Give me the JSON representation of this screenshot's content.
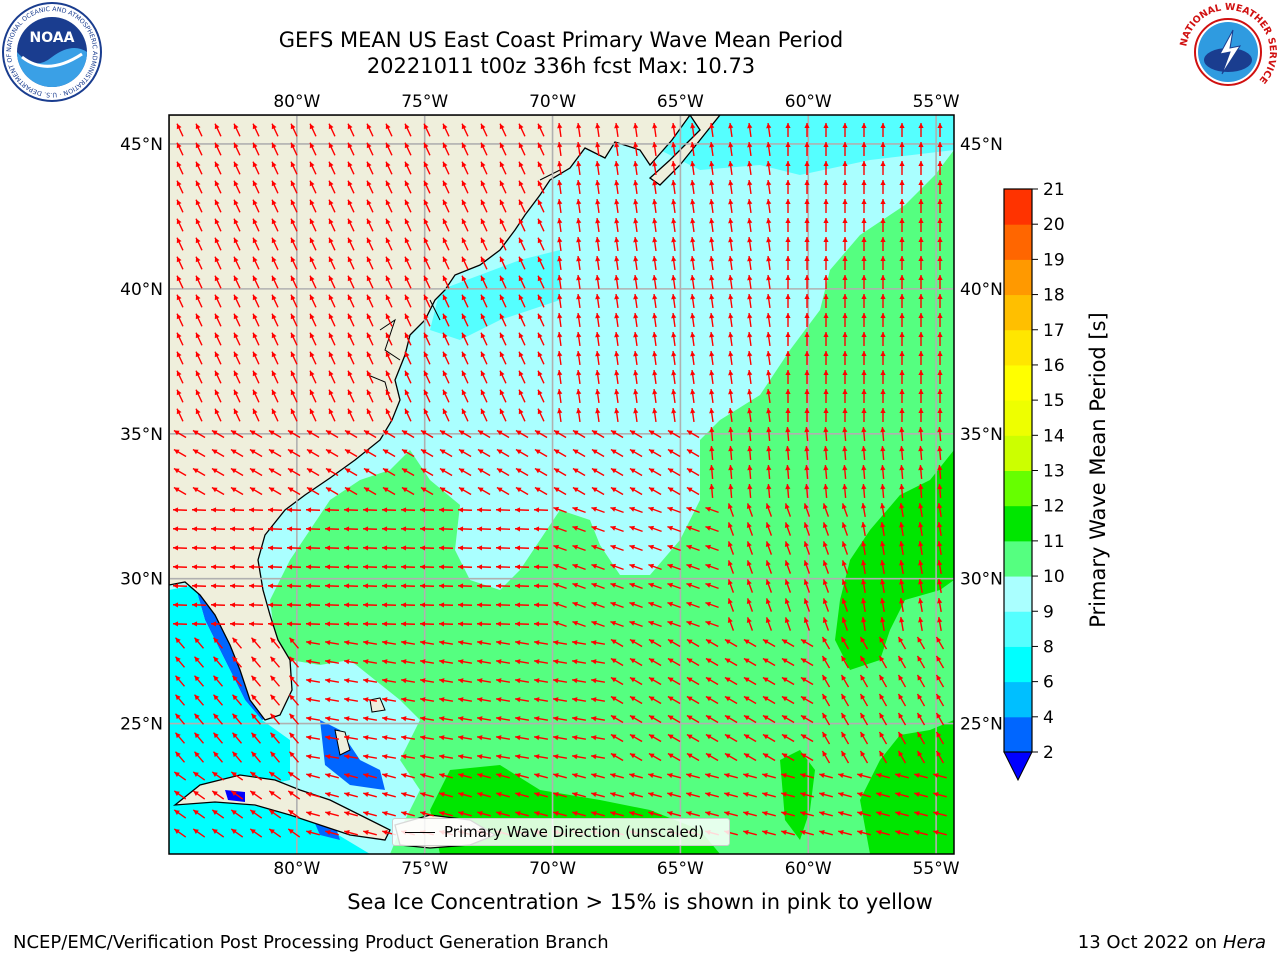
{
  "header": {
    "title_line1": "GEFS MEAN US East Coast Primary Wave Mean Period",
    "title_line2": "20221011 t00z 336h fcst   Max: 10.73"
  },
  "logos": {
    "noaa_text": "NOAA",
    "noaa_ring": "NATIONAL OCEANIC AND ATMOSPHERIC ADMINISTRATION · U.S. DEPARTMENT OF COMMERCE ·",
    "nws_ring": "NATIONAL WEATHER SERVICE"
  },
  "map": {
    "lon_ticks": [
      "80°W",
      "75°W",
      "70°W",
      "65°W",
      "60°W",
      "55°W"
    ],
    "lat_ticks_left": [
      "45°N",
      "40°N",
      "35°N",
      "30°N",
      "25°N"
    ],
    "lat_ticks_right": [
      "45°N",
      "40°N",
      "35°N",
      "30°N",
      "25°N"
    ],
    "lon_values": [
      -80,
      -75,
      -70,
      -65,
      -60,
      -55
    ],
    "lat_values": [
      45,
      40,
      35,
      30,
      25
    ],
    "extent": {
      "lon_min": -85,
      "lon_max": -54.3,
      "lat_min": 20.5,
      "lat_max": 46
    },
    "colors": {
      "land": "#efefdc",
      "coast": "#000000",
      "grid": "#b0b0b0",
      "arrow": "#ff0000"
    }
  },
  "legend": {
    "label": "Primary Wave Direction (unscaled)"
  },
  "colorbar": {
    "label": "Primary Wave Mean Period [s]",
    "tick_labels": [
      "2",
      "4",
      "6",
      "8",
      "9",
      "10",
      "11",
      "12",
      "13",
      "14",
      "15",
      "16",
      "17",
      "18",
      "19",
      "20",
      "21"
    ],
    "colors": [
      "#0066ff",
      "#00bfff",
      "#00ffff",
      "#55ffff",
      "#aaffff",
      "#55ff80",
      "#00e600",
      "#66ff00",
      "#ccff00",
      "#eeff00",
      "#ffff00",
      "#ffe600",
      "#ffbf00",
      "#ff9900",
      "#ff6600",
      "#ff3300",
      "#ff0000"
    ],
    "extend_color": "#0000ff"
  },
  "footer": {
    "subtitle": "Sea Ice Concentration > 15% is shown in pink to yellow",
    "left": "NCEP/EMC/Verification Post Processing Product Generation Branch",
    "right_date": "13 Oct 2022 on",
    "right_machine": "Hera"
  }
}
